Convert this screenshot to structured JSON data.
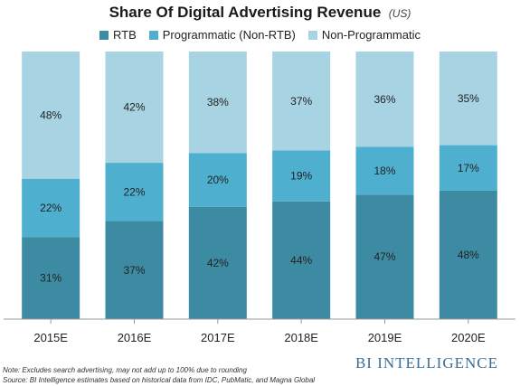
{
  "header": {
    "title": "Share Of Digital Advertising Revenue",
    "subtitle": "(US)"
  },
  "footer": {
    "note": "Note: Excludes search advertising, may not add up to 100% due to rounding",
    "source": "Source: BI Intelligence estimates based on historical data from IDC, PubMatic, and Magna Global",
    "brand": "BI INTELLIGENCE"
  },
  "colors": {
    "rtb": "#3d8ba3",
    "programmatic": "#4eb0ce",
    "non_programmatic": "#a7d3e3",
    "axis": "#999999",
    "label": "#222222"
  },
  "chart_data": {
    "type": "bar",
    "stacked": true,
    "title": "Share Of Digital Advertising Revenue",
    "subtitle": "(US)",
    "categories": [
      "2015E",
      "2016E",
      "2017E",
      "2018E",
      "2019E",
      "2020E"
    ],
    "series": [
      {
        "name": "RTB",
        "values": [
          31,
          37,
          42,
          44,
          47,
          48
        ]
      },
      {
        "name": "Programmatic (Non-RTB)",
        "values": [
          22,
          22,
          20,
          19,
          18,
          17
        ]
      },
      {
        "name": "Non-Programmatic",
        "values": [
          48,
          42,
          38,
          37,
          36,
          35
        ]
      }
    ],
    "value_suffix": "%",
    "legend_position": "top",
    "grid": false
  }
}
